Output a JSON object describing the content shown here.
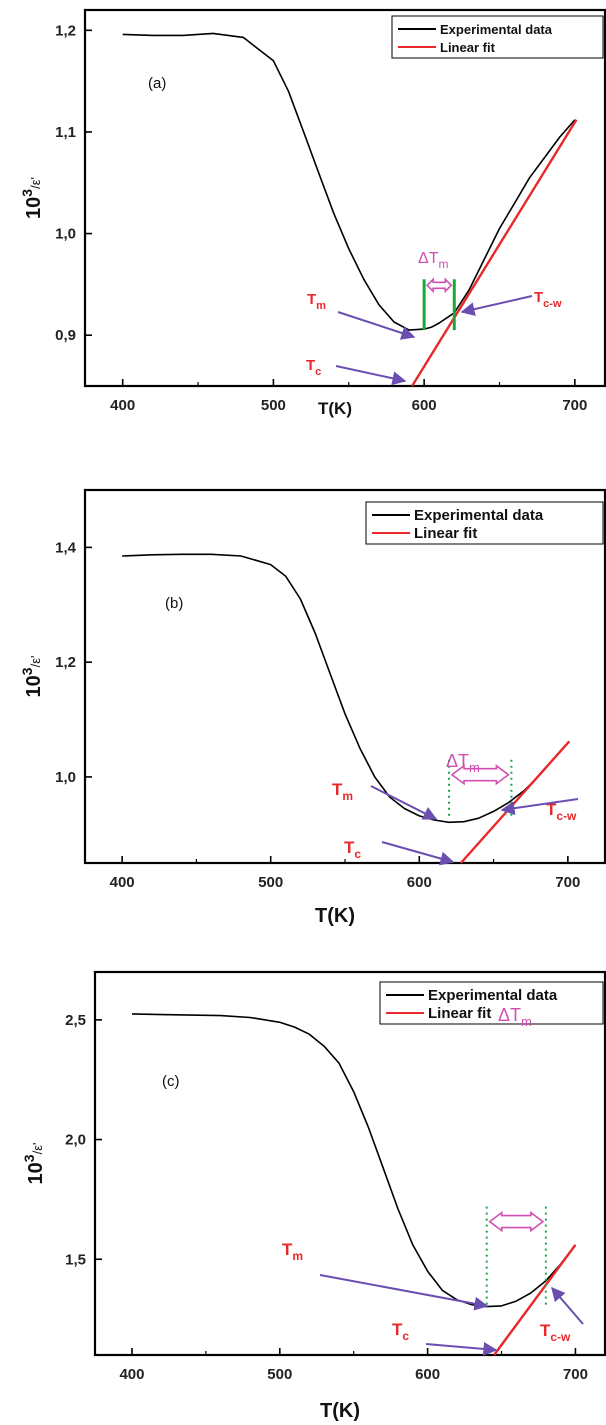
{
  "chart_data": [
    {
      "panel": "(a)",
      "type": "line",
      "xlabel": "T(K)",
      "ylabel": "10³/ε'",
      "ylabel_parts": {
        "base": "10",
        "sup": "3",
        "sub": "ε'"
      },
      "xlim": [
        375,
        720
      ],
      "ylim": [
        0.85,
        1.22
      ],
      "xticks": [
        400,
        500,
        600,
        700
      ],
      "xticklabels": [
        "400",
        "500",
        "600",
        "700"
      ],
      "yticks": [
        0.9,
        1.0,
        1.1,
        1.2
      ],
      "yticklabels": [
        "0,9",
        "1,0",
        "1,1",
        "1,2"
      ],
      "legend": {
        "position": "top-right",
        "entries": [
          "Experimental data",
          "Linear fit"
        ]
      },
      "series": [
        {
          "name": "Experimental data",
          "color": "#000000",
          "x": [
            400,
            420,
            440,
            460,
            480,
            500,
            510,
            520,
            530,
            540,
            550,
            560,
            570,
            580,
            590,
            600,
            605,
            610,
            620,
            630,
            640,
            650,
            660,
            670,
            680,
            690,
            700
          ],
          "y": [
            1.196,
            1.195,
            1.195,
            1.197,
            1.193,
            1.17,
            1.14,
            1.1,
            1.06,
            1.02,
            0.985,
            0.955,
            0.93,
            0.913,
            0.905,
            0.906,
            0.908,
            0.912,
            0.922,
            0.945,
            0.975,
            1.005,
            1.03,
            1.055,
            1.075,
            1.095,
            1.112
          ]
        },
        {
          "name": "Linear fit",
          "color": "#e8282b",
          "x": [
            592,
            701
          ],
          "y": [
            0.85,
            1.112
          ]
        }
      ],
      "markers": {
        "T_m": 600,
        "T_cw": 620,
        "T_c": 592,
        "dT_bars_y": [
          0.905,
          0.955
        ],
        "style": "solid"
      },
      "annotations": {
        "tm": "T",
        "tm_sub": "m",
        "tc": "T",
        "tc_sub": "c",
        "tcw": "T",
        "tcw_sub": "c-w",
        "dtm": "ΔT",
        "dtm_sub": "m"
      }
    },
    {
      "panel": "(b)",
      "type": "line",
      "xlabel": "T(K)",
      "ylabel": "10³/ε'",
      "ylabel_parts": {
        "base": "10",
        "sup": "3",
        "sub": "ε'"
      },
      "xlim": [
        375,
        725
      ],
      "ylim": [
        0.85,
        1.5
      ],
      "xticks": [
        400,
        500,
        600,
        700
      ],
      "xticklabels": [
        "400",
        "500",
        "600",
        "700"
      ],
      "yticks": [
        1.0,
        1.2,
        1.4
      ],
      "yticklabels": [
        "1,0",
        "1,2",
        "1,4"
      ],
      "legend": {
        "position": "top-right",
        "entries": [
          "Experimental data",
          "Linear fit"
        ]
      },
      "series": [
        {
          "name": "Experimental data",
          "color": "#000000",
          "x": [
            400,
            420,
            440,
            460,
            480,
            500,
            510,
            520,
            530,
            540,
            550,
            560,
            570,
            580,
            590,
            600,
            610,
            620,
            630,
            640,
            650,
            660,
            670,
            680,
            690,
            700
          ],
          "y": [
            1.385,
            1.387,
            1.388,
            1.388,
            1.385,
            1.37,
            1.35,
            1.31,
            1.25,
            1.18,
            1.11,
            1.05,
            1.0,
            0.965,
            0.945,
            0.932,
            0.925,
            0.921,
            0.922,
            0.928,
            0.94,
            0.955,
            0.975,
            1.0,
            1.03,
            1.06
          ]
        },
        {
          "name": "Linear fit",
          "color": "#e8282b",
          "x": [
            628,
            701
          ],
          "y": [
            0.85,
            1.062
          ]
        }
      ],
      "markers": {
        "T_m": 620,
        "T_cw": 662,
        "T_c": 628,
        "dT_bars_y": [
          0.93,
          1.03
        ],
        "style": "dotted"
      },
      "annotations": {
        "tm": "T",
        "tm_sub": "m",
        "tc": "T",
        "tc_sub": "c",
        "tcw": "T",
        "tcw_sub": "c-w",
        "dtm": "ΔT",
        "dtm_sub": "m"
      }
    },
    {
      "panel": "(c)",
      "type": "line",
      "xlabel": "T(K)",
      "ylabel": "10³/ε'",
      "ylabel_parts": {
        "base": "10",
        "sup": "3",
        "sub": "ε'"
      },
      "xlim": [
        375,
        720
      ],
      "ylim": [
        1.1,
        2.7
      ],
      "xticks": [
        400,
        500,
        600,
        700
      ],
      "xticklabels": [
        "400",
        "500",
        "600",
        "700"
      ],
      "yticks": [
        1.5,
        2.0,
        2.5
      ],
      "yticklabels": [
        "1,5",
        "2,0",
        "2,5"
      ],
      "legend": {
        "position": "top-right",
        "entries": [
          "Experimental data",
          "Linear fit"
        ]
      },
      "series": [
        {
          "name": "Experimental data",
          "color": "#000000",
          "x": [
            400,
            420,
            440,
            460,
            480,
            500,
            510,
            520,
            530,
            540,
            550,
            560,
            570,
            580,
            590,
            600,
            610,
            620,
            630,
            640,
            650,
            660,
            670,
            680,
            690,
            700
          ],
          "y": [
            2.525,
            2.522,
            2.52,
            2.518,
            2.51,
            2.49,
            2.47,
            2.44,
            2.39,
            2.32,
            2.2,
            2.05,
            1.88,
            1.71,
            1.56,
            1.45,
            1.37,
            1.33,
            1.31,
            1.302,
            1.305,
            1.325,
            1.36,
            1.41,
            1.48,
            1.56
          ]
        },
        {
          "name": "Linear fit",
          "color": "#e8282b",
          "x": [
            645,
            700
          ],
          "y": [
            1.1,
            1.56
          ]
        }
      ],
      "markers": {
        "T_m": 640,
        "T_cw": 680,
        "T_c": 645,
        "dT_bars_y": [
          1.3,
          1.72
        ],
        "style": "dotted"
      },
      "annotations": {
        "tm": "T",
        "tm_sub": "m",
        "tc": "T",
        "tc_sub": "c",
        "tcw": "T",
        "tcw_sub": "c-w",
        "dtm": "ΔT",
        "dtm_sub": "m"
      }
    }
  ]
}
